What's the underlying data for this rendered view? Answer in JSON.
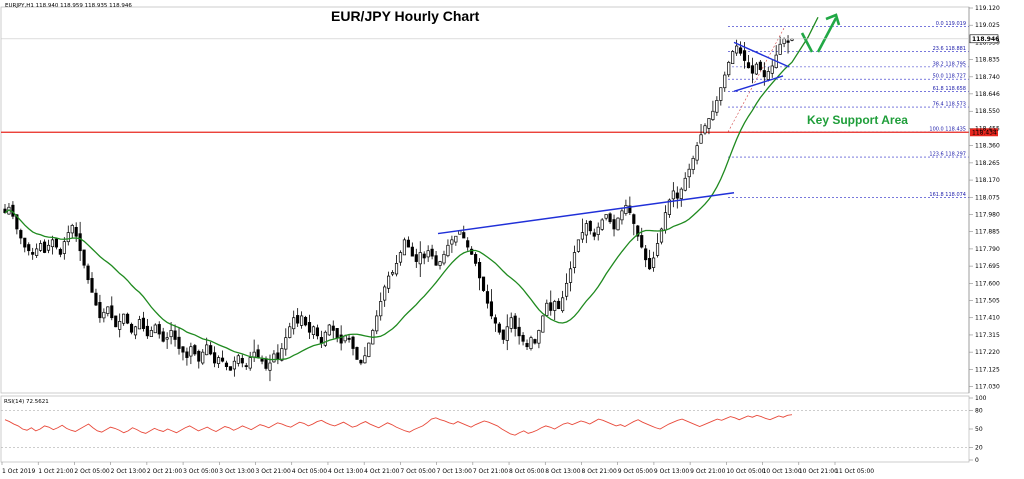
{
  "chart_data": {
    "type": "candlestick",
    "title": "EUR/JPY Hourly Chart",
    "symbol_header": "EURJPY,H1  118.940 118.959 118.935 118.946",
    "current_price_label": "118.946",
    "support_price_label": "118.434",
    "price_axis": {
      "range": [
        117.0,
        119.12
      ],
      "ticks": [
        "119.120",
        "119.025",
        "118.930",
        "118.835",
        "118.740",
        "118.646",
        "118.550",
        "118.455",
        "118.360",
        "118.265",
        "118.170",
        "118.075",
        "117.980",
        "117.885",
        "117.790",
        "117.695",
        "117.600",
        "117.505",
        "117.410",
        "117.315",
        "117.220",
        "117.125",
        "117.030"
      ]
    },
    "time_axis_labels": [
      "1 Oct 2019",
      "1 Oct 21:00",
      "2 Oct 05:00",
      "2 Oct 13:00",
      "2 Oct 21:00",
      "3 Oct 05:00",
      "3 Oct 13:00",
      "3 Oct 21:00",
      "4 Oct 05:00",
      "4 Oct 13:00",
      "4 Oct 21:00",
      "7 Oct 05:00",
      "7 Oct 13:00",
      "7 Oct 21:00",
      "8 Oct 05:00",
      "8 Oct 13:00",
      "8 Oct 21:00",
      "9 Oct 05:00",
      "9 Oct 13:00",
      "9 Oct 21:00",
      "10 Oct 05:00",
      "10 Oct 13:00",
      "10 Oct 21:00",
      "11 Oct 05:00"
    ],
    "close_path": [
      117.99,
      118.02,
      117.97,
      117.9,
      117.85,
      117.8,
      117.78,
      117.76,
      117.79,
      117.82,
      117.77,
      117.81,
      117.84,
      117.8,
      117.76,
      117.83,
      117.88,
      117.92,
      117.86,
      117.78,
      117.7,
      117.62,
      117.55,
      117.48,
      117.41,
      117.44,
      117.47,
      117.41,
      117.36,
      117.39,
      117.43,
      117.38,
      117.33,
      117.36,
      117.4,
      117.35,
      117.31,
      117.34,
      117.37,
      117.32,
      117.28,
      117.3,
      117.34,
      117.29,
      117.24,
      117.22,
      117.19,
      117.25,
      117.21,
      117.17,
      117.22,
      117.26,
      117.21,
      117.16,
      117.19,
      117.17,
      117.14,
      117.12,
      117.17,
      117.2,
      117.16,
      117.14,
      117.19,
      117.22,
      117.19,
      117.17,
      117.13,
      117.16,
      117.21,
      117.18,
      117.24,
      117.3,
      117.36,
      117.41,
      117.38,
      117.42,
      117.37,
      117.33,
      117.36,
      117.31,
      117.27,
      117.33,
      117.37,
      117.34,
      117.3,
      117.27,
      117.31,
      117.29,
      117.24,
      117.18,
      117.16,
      117.2,
      117.27,
      117.34,
      117.42,
      117.5,
      117.58,
      117.64,
      117.66,
      117.71,
      117.77,
      117.84,
      117.8,
      117.75,
      117.72,
      117.77,
      117.74,
      117.78,
      117.75,
      117.7,
      117.72,
      117.76,
      117.81,
      117.84,
      117.86,
      117.89,
      117.85,
      117.8,
      117.76,
      117.71,
      117.63,
      117.56,
      117.49,
      117.42,
      117.38,
      117.33,
      117.29,
      117.36,
      117.41,
      117.35,
      117.31,
      117.28,
      117.25,
      117.3,
      117.27,
      117.34,
      117.42,
      117.49,
      117.45,
      117.5,
      117.46,
      117.52,
      117.6,
      117.68,
      117.77,
      117.84,
      117.88,
      117.93,
      117.89,
      117.86,
      117.91,
      117.95,
      117.98,
      117.94,
      117.9,
      117.96,
      118.0,
      118.03,
      117.99,
      117.93,
      117.86,
      117.8,
      117.73,
      117.68,
      117.74,
      117.82,
      117.9,
      117.99,
      118.06,
      118.11,
      118.07,
      118.12,
      118.18,
      118.23,
      118.29,
      118.36,
      118.42,
      118.47,
      118.51,
      118.55,
      118.61,
      118.68,
      118.75,
      118.82,
      118.88,
      118.91,
      118.87,
      118.83,
      118.79,
      118.76,
      118.81,
      118.78,
      118.74,
      118.77,
      118.8,
      118.86,
      118.92,
      118.95,
      118.93,
      118.95
    ]
  },
  "rsi": {
    "label": "RSI(14) 72.5621",
    "axis_ticks": [
      "100",
      "80",
      "50",
      "20",
      "0"
    ],
    "values": [
      65,
      62,
      58,
      55,
      50,
      48,
      52,
      47,
      50,
      55,
      53,
      49,
      52,
      56,
      51,
      48,
      46,
      50,
      54,
      58,
      52,
      47,
      45,
      49,
      53,
      51,
      48,
      44,
      47,
      52,
      49,
      45,
      43,
      47,
      51,
      48,
      46,
      50,
      47,
      44,
      48,
      52,
      55,
      51,
      47,
      50,
      53,
      49,
      46,
      50,
      54,
      52,
      48,
      51,
      55,
      52,
      49,
      53,
      57,
      55,
      52,
      56,
      60,
      58,
      55,
      53,
      57,
      61,
      59,
      55,
      58,
      62,
      64,
      60,
      57,
      55,
      58,
      61,
      57,
      53,
      55,
      59,
      62,
      58,
      55,
      52,
      56,
      60,
      57,
      53,
      50,
      47,
      45,
      49,
      52,
      55,
      60,
      66,
      68,
      65,
      63,
      60,
      58,
      62,
      59,
      56,
      53,
      57,
      60,
      63,
      61,
      58,
      55,
      50,
      46,
      42,
      40,
      44,
      47,
      43,
      45,
      48,
      52,
      55,
      53,
      50,
      54,
      58,
      60,
      57,
      60,
      63,
      61,
      58,
      62,
      66,
      64,
      61,
      58,
      55,
      57,
      54,
      58,
      62,
      65,
      61,
      58,
      55,
      52,
      50,
      54,
      58,
      61,
      64,
      66,
      63,
      60,
      57,
      54,
      57,
      60,
      63,
      66,
      64,
      67,
      70,
      68,
      65,
      68,
      71,
      69,
      72,
      70,
      67,
      65,
      68,
      71,
      69,
      72,
      73
    ]
  },
  "fibonacci_levels": [
    {
      "label": "0.0 119.019",
      "price": 119.019
    },
    {
      "label": "23.6 118.881",
      "price": 118.881
    },
    {
      "label": "38.2 118.795",
      "price": 118.795
    },
    {
      "label": "50.0 118.727",
      "price": 118.727
    },
    {
      "label": "61.8 118.658",
      "price": 118.658
    },
    {
      "label": "76.4 118.573",
      "price": 118.573
    },
    {
      "label": "100.0 118.435",
      "price": 118.435
    },
    {
      "label": "123.6 118.297",
      "price": 118.297
    },
    {
      "label": "161.8 118.074",
      "price": 118.074
    }
  ],
  "annotations": {
    "support_text": "Key Support Area"
  },
  "colors": {
    "bull": "#ffffff",
    "bear": "#000000",
    "ma": "#1f8a1f",
    "trendline": "#2030d8",
    "support": "#e8271f",
    "fib": "#2828c8",
    "rsi": "#e84b3c",
    "arrow": "#21a845"
  }
}
